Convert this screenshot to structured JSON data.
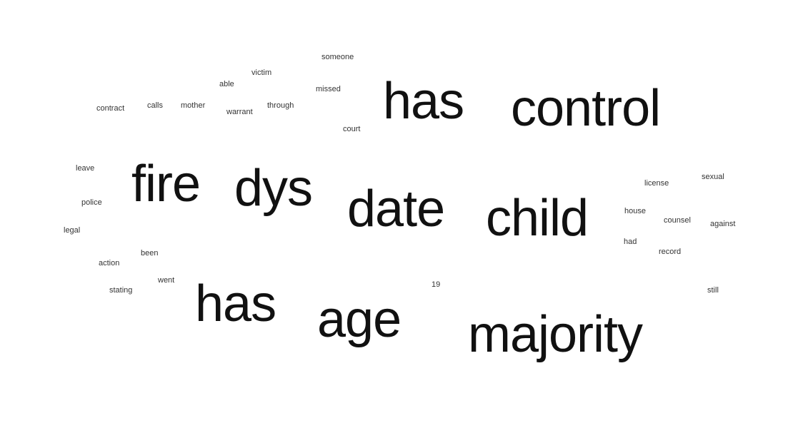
{
  "colors": {
    "background": "#ffffff",
    "text": "#111111"
  },
  "words": {
    "someone": "someone",
    "victim": "victim",
    "able": "able",
    "missed": "missed",
    "contract": "contract",
    "calls": "calls",
    "mother": "mother",
    "warrant": "warrant",
    "through": "through",
    "court": "court",
    "has_top": "has",
    "control": "control",
    "leave": "leave",
    "fire": "fire",
    "dys": "dys",
    "date": "date",
    "child": "child",
    "license": "license",
    "sexual": "sexual",
    "police": "police",
    "house": "house",
    "counsel": "counsel",
    "against": "against",
    "legal": "legal",
    "had": "had",
    "been": "been",
    "record": "record",
    "action": "action",
    "went": "went",
    "num19": "19",
    "stating": "stating",
    "still": "still",
    "has_bottom": "has",
    "age": "age",
    "majority": "majority"
  }
}
